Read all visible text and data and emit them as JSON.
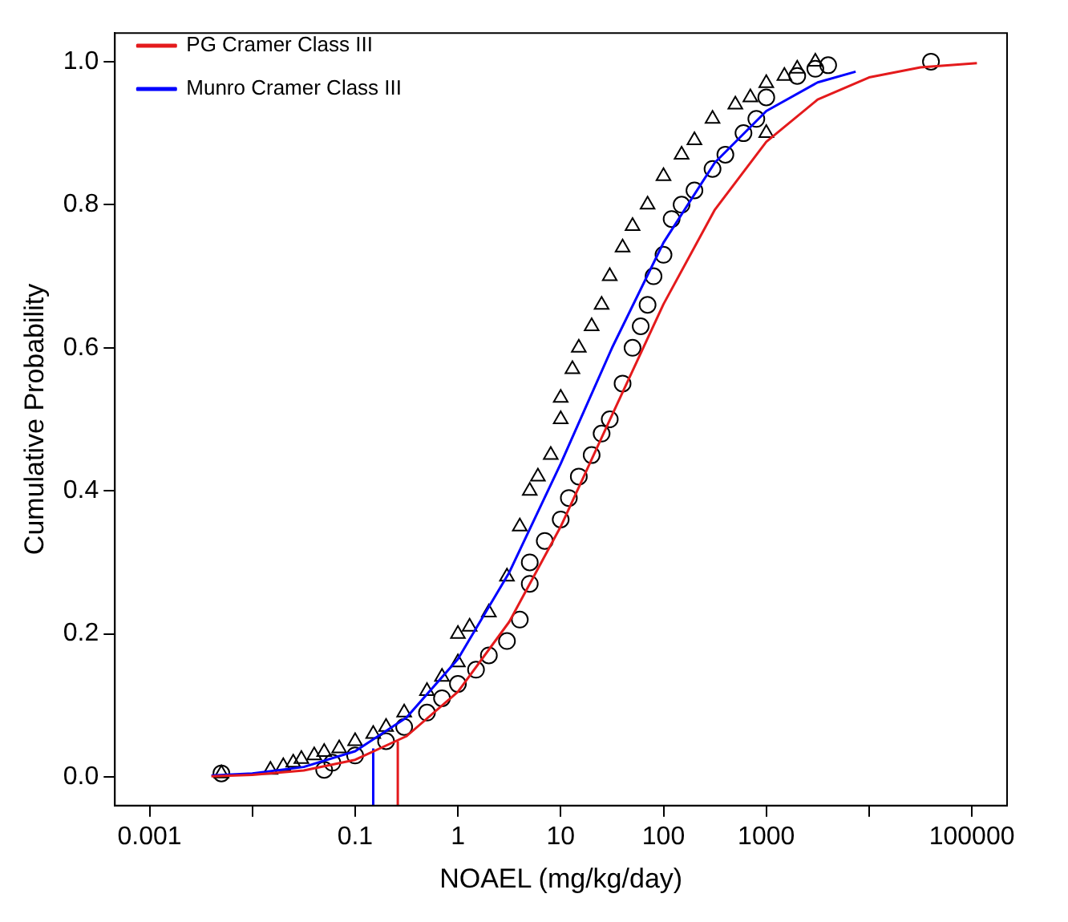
{
  "chart_data": {
    "type": "scatter",
    "xlabel": "NOAEL (mg/kg/day)",
    "ylabel": "Cumulative Probability",
    "log": "x",
    "grid": false,
    "legend": "top left",
    "xlim": [
      0.00046,
      220000
    ],
    "ylim": [
      -0.04,
      1.04
    ],
    "xticks": [
      0.001,
      {
        "value": 0.01,
        "label": null
      },
      0.1,
      1,
      10,
      100,
      1000,
      {
        "value": 10000,
        "label": null
      },
      100000
    ],
    "yticks": [
      {
        "value": 0,
        "label": "0.0"
      },
      {
        "value": 0.2,
        "label": "0.2"
      },
      {
        "value": 0.4,
        "label": "0.4"
      },
      {
        "value": 0.6,
        "label": "0.6"
      },
      {
        "value": 0.8,
        "label": "0.8"
      },
      {
        "value": 1,
        "label": "1.0"
      }
    ],
    "series": [
      {
        "name": "PG Cramer Class III",
        "type": "line",
        "color": "#e41a1c",
        "x": [
          0.004,
          0.01,
          0.0316,
          0.1,
          0.316,
          1,
          3.16,
          10,
          31.6,
          100,
          316,
          1000,
          3162,
          10000,
          31623,
          112000
        ],
        "values": [
          0.001,
          0.003,
          0.009,
          0.024,
          0.057,
          0.119,
          0.217,
          0.35,
          0.506,
          0.661,
          0.793,
          0.888,
          0.947,
          0.978,
          0.992,
          0.998
        ]
      },
      {
        "name": "Munro Cramer Class III",
        "type": "line",
        "color": "#0000ff",
        "x": [
          0.004,
          0.01,
          0.0316,
          0.1,
          0.316,
          1,
          3.16,
          10,
          31.6,
          100,
          316,
          1000,
          3162,
          7400
        ],
        "values": [
          0.002,
          0.005,
          0.014,
          0.036,
          0.083,
          0.165,
          0.286,
          0.438,
          0.6,
          0.747,
          0.859,
          0.931,
          0.971,
          0.986
        ]
      },
      {
        "marker": "circle",
        "color": "#000000",
        "x": [
          0.005,
          0.05,
          0.06,
          0.1,
          0.2,
          0.3,
          0.5,
          0.7,
          1,
          1.5,
          2,
          3,
          4,
          5,
          5,
          7,
          10,
          12,
          15,
          20,
          25,
          30,
          40,
          50,
          60,
          70,
          80,
          100,
          120,
          150,
          200,
          300,
          400,
          600,
          800,
          1000,
          2000,
          3000,
          4000,
          40000
        ],
        "values": [
          0.005,
          0.01,
          0.02,
          0.03,
          0.05,
          0.07,
          0.09,
          0.11,
          0.13,
          0.15,
          0.17,
          0.19,
          0.22,
          0.27,
          0.3,
          0.33,
          0.36,
          0.39,
          0.42,
          0.45,
          0.48,
          0.5,
          0.55,
          0.6,
          0.63,
          0.66,
          0.7,
          0.73,
          0.78,
          0.8,
          0.82,
          0.85,
          0.87,
          0.9,
          0.92,
          0.95,
          0.98,
          0.99,
          0.995,
          1
        ]
      },
      {
        "marker": "triangle",
        "color": "#000000",
        "x": [
          0.005,
          0.015,
          0.02,
          0.025,
          0.03,
          0.04,
          0.05,
          0.07,
          0.1,
          0.15,
          0.2,
          0.3,
          0.5,
          0.7,
          1,
          1,
          1.3,
          2,
          3,
          4,
          5,
          6,
          8,
          10,
          10,
          13,
          15,
          20,
          25,
          30,
          40,
          50,
          70,
          100,
          150,
          200,
          300,
          500,
          700,
          1000,
          1000,
          1500,
          2000,
          3000
        ],
        "values": [
          0.005,
          0.01,
          0.015,
          0.02,
          0.025,
          0.03,
          0.035,
          0.04,
          0.05,
          0.06,
          0.07,
          0.09,
          0.12,
          0.14,
          0.16,
          0.2,
          0.21,
          0.23,
          0.28,
          0.35,
          0.4,
          0.42,
          0.45,
          0.5,
          0.53,
          0.57,
          0.6,
          0.63,
          0.66,
          0.7,
          0.74,
          0.77,
          0.8,
          0.84,
          0.87,
          0.89,
          0.92,
          0.94,
          0.95,
          0.9,
          0.97,
          0.98,
          0.99,
          1
        ]
      },
      {
        "type": "line",
        "color": "#0000ff",
        "x": [
          0.15,
          0.15
        ],
        "values": [
          -0.04,
          0.04
        ]
      },
      {
        "type": "line",
        "color": "#e41a1c",
        "x": [
          0.26,
          0.26
        ],
        "values": [
          -0.04,
          0.05
        ]
      }
    ]
  }
}
